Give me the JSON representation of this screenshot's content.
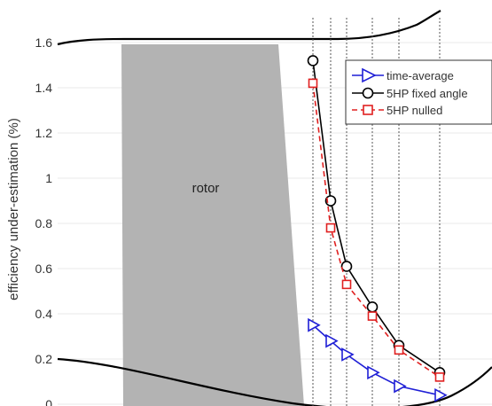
{
  "chart_data": {
    "type": "line",
    "title": "",
    "xlabel": "",
    "ylabel": "efficiency under-estimation (%)",
    "ylim": [
      0,
      1.7
    ],
    "y_ticks": [
      {
        "value": 0,
        "label": "0"
      },
      {
        "value": 0.2,
        "label": "0.2"
      },
      {
        "value": 0.4,
        "label": "0.4"
      },
      {
        "value": 0.6,
        "label": "0.6"
      },
      {
        "value": 0.8,
        "label": "0.8"
      },
      {
        "value": 1.0,
        "label": "1"
      },
      {
        "value": 1.2,
        "label": "1.2"
      },
      {
        "value": 1.4,
        "label": "1.4"
      },
      {
        "value": 1.6,
        "label": "1.6"
      }
    ],
    "grid": true,
    "legend_position": "top-right",
    "annotation": {
      "text": "rotor"
    },
    "series": [
      {
        "name": "time-average",
        "color": "#1f1fd6",
        "marker": "triangle-right",
        "dash": "solid",
        "points": [
          [
            0,
            0.35
          ],
          [
            1,
            0.28
          ],
          [
            2,
            0.22
          ],
          [
            3,
            0.14
          ],
          [
            4,
            0.08
          ],
          [
            5,
            0.04
          ]
        ]
      },
      {
        "name": "5HP fixed angle",
        "color": "#000000",
        "marker": "circle",
        "dash": "solid",
        "points": [
          [
            0,
            1.52
          ],
          [
            1,
            0.9
          ],
          [
            2,
            0.61
          ],
          [
            3,
            0.43
          ],
          [
            4,
            0.26
          ],
          [
            5,
            0.14
          ]
        ]
      },
      {
        "name": "5HP nulled",
        "color": "#e02020",
        "marker": "square",
        "dash": "dashed",
        "points": [
          [
            0,
            1.42
          ],
          [
            1,
            0.78
          ],
          [
            2,
            0.53
          ],
          [
            3,
            0.39
          ],
          [
            4,
            0.24
          ],
          [
            5,
            0.12
          ]
        ]
      }
    ]
  },
  "colors": {
    "rotor_fill": "#b3b3b3",
    "wall": "#000000",
    "probe_lines": "#555555"
  }
}
